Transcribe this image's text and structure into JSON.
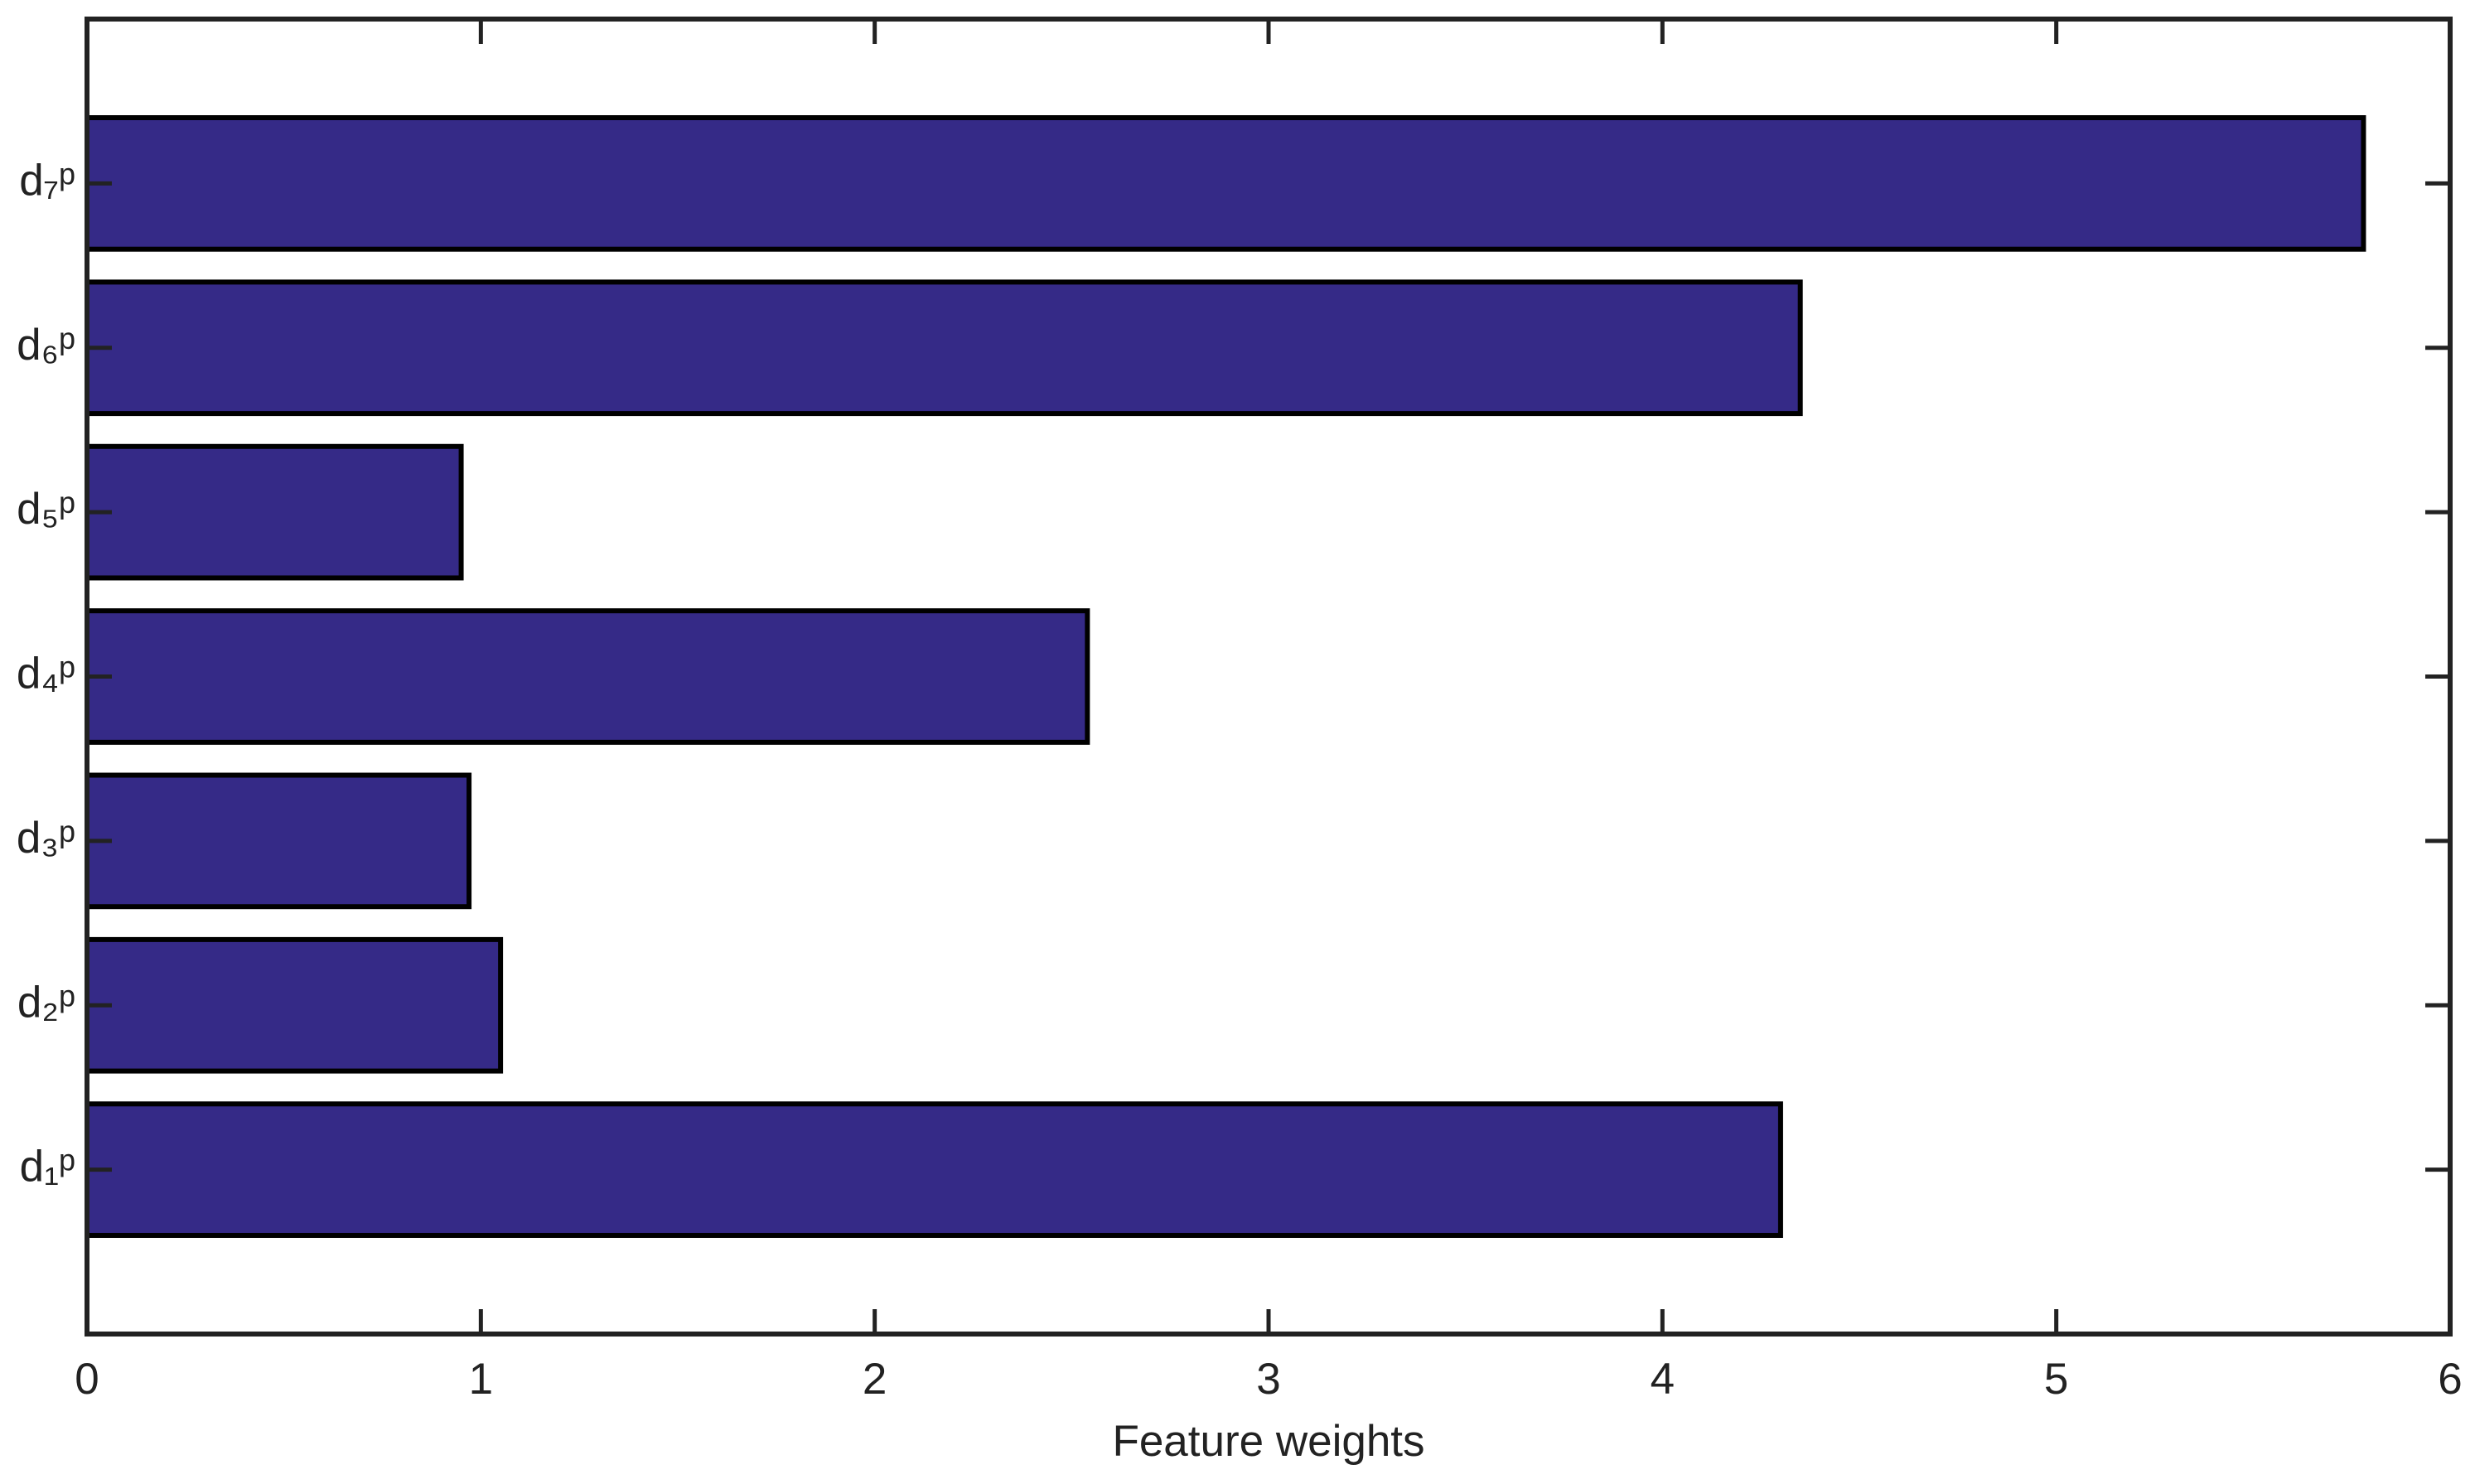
{
  "chart_data": {
    "type": "barh",
    "categories": [
      "d₁ᵖ",
      "d₂ᵖ",
      "d₃ᵖ",
      "d₄ᵖ",
      "d₅ᵖ",
      "d₆ᵖ",
      "d₇ᵖ"
    ],
    "values": [
      4.3,
      1.05,
      0.97,
      2.54,
      0.95,
      4.35,
      5.78
    ],
    "color": "#352a87",
    "xlim": [
      0,
      6
    ],
    "xticks": [
      0,
      1,
      2,
      3,
      4,
      5,
      6
    ],
    "xlabel": "Feature weights"
  }
}
